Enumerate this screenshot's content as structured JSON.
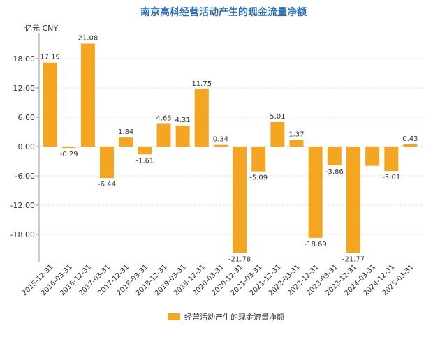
{
  "chart_data": {
    "type": "bar",
    "title": "南京高科经营活动产生的现金流量净额",
    "ylabel": "亿元  CNY",
    "xlabel": "",
    "ylim": [
      -24,
      24
    ],
    "yticks": [
      "18.00",
      "12.00",
      "6.00",
      "0.00",
      "-6.00",
      "-12.00",
      "-18.00"
    ],
    "ytick_values": [
      18,
      12,
      6,
      0,
      -6,
      -12,
      -18
    ],
    "grid": true,
    "legend": "bottom-center",
    "categories": [
      "2015-12-31",
      "2016-03-31",
      "2016-12-31",
      "2017-03-31",
      "2017-12-31",
      "2018-03-31",
      "2018-12-31",
      "2019-03-31",
      "2019-12-31",
      "2020-03-31",
      "2020-12-31",
      "2021-03-31",
      "2021-12-31",
      "2022-03-31",
      "2022-12-31",
      "2023-03-31",
      "2023-12-31",
      "2024-03-31",
      "2024-12-31",
      "2025-03-31"
    ],
    "series": [
      {
        "name": "经营活动产生的现金流量净额",
        "color": "#f4a622",
        "values": [
          17.19,
          -0.29,
          21.08,
          -6.44,
          1.84,
          -1.61,
          4.65,
          4.31,
          11.75,
          0.34,
          -21.78,
          -5.09,
          5.01,
          1.37,
          -18.69,
          -3.86,
          -21.77,
          -3.95,
          -5.01,
          0.43
        ],
        "labels": [
          "17.19",
          "-0.29",
          "21.08",
          "-6.44",
          "1.84",
          "-1.61",
          "4.65",
          "4.31",
          "11.75",
          "0.34",
          "-21.78",
          "-5.09",
          "5.01",
          "1.37",
          "-18.69",
          "-3.86",
          "-21.77",
          "",
          "-5.01",
          "0.43"
        ]
      }
    ],
    "title_color": "#2d6db3"
  }
}
